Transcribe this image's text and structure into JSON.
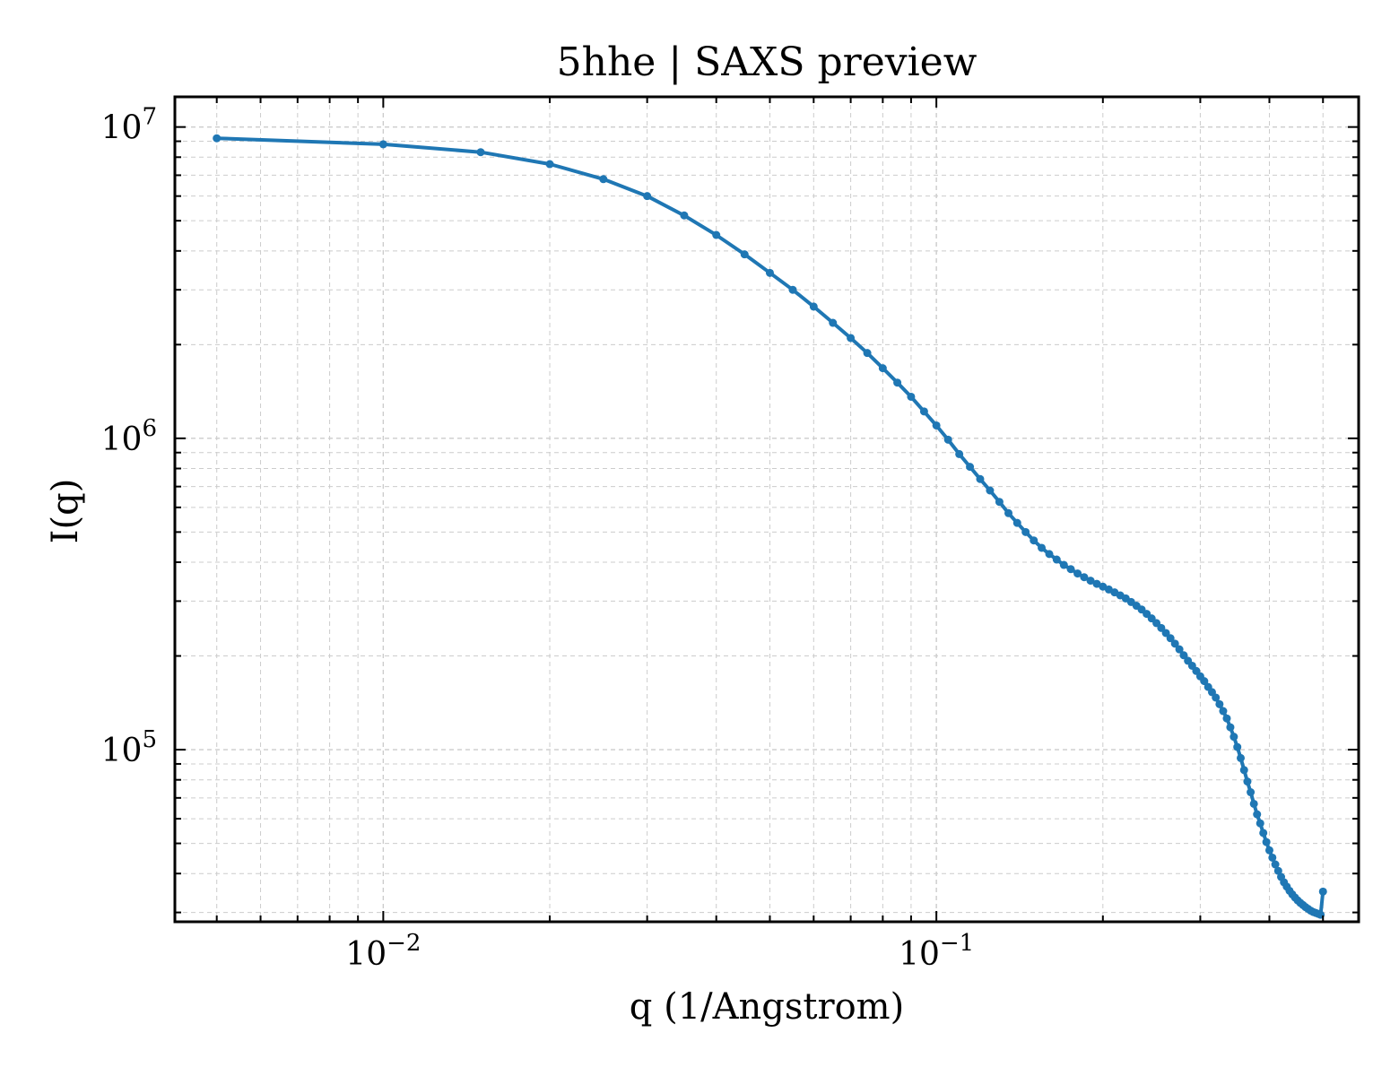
{
  "chart_data": {
    "type": "line",
    "title": "5hhe | SAXS preview",
    "xlabel": "q (1/Angstrom)",
    "ylabel": "I(q)",
    "xscale": "log",
    "yscale": "log",
    "xlim": [
      0.0042,
      0.58
    ],
    "ylim": [
      28000,
      12500000
    ],
    "grid": true,
    "legend": "none",
    "x_ticks": [
      {
        "value": 0.01,
        "base": "10",
        "exp": "−2"
      },
      {
        "value": 0.1,
        "base": "10",
        "exp": "−1"
      }
    ],
    "y_ticks": [
      {
        "value": 100000,
        "base": "10",
        "exp": "5"
      },
      {
        "value": 1000000,
        "base": "10",
        "exp": "6"
      },
      {
        "value": 10000000,
        "base": "10",
        "exp": "7"
      }
    ],
    "series": [
      {
        "color": "#1f77b4",
        "x": [
          0.005,
          0.01,
          0.015,
          0.02,
          0.025,
          0.03,
          0.035,
          0.04,
          0.045,
          0.05,
          0.055,
          0.06,
          0.065,
          0.07,
          0.075,
          0.08,
          0.085,
          0.09,
          0.095,
          0.1,
          0.105,
          0.11,
          0.115,
          0.12,
          0.125,
          0.13,
          0.135,
          0.14,
          0.145,
          0.15,
          0.155,
          0.16,
          0.165,
          0.17,
          0.175,
          0.18,
          0.185,
          0.19,
          0.195,
          0.2,
          0.205,
          0.21,
          0.215,
          0.22,
          0.225,
          0.23,
          0.235,
          0.24,
          0.245,
          0.25,
          0.255,
          0.26,
          0.265,
          0.27,
          0.275,
          0.28,
          0.285,
          0.29,
          0.295,
          0.3,
          0.305,
          0.31,
          0.315,
          0.32,
          0.325,
          0.33,
          0.335,
          0.34,
          0.345,
          0.35,
          0.355,
          0.36,
          0.365,
          0.37,
          0.375,
          0.38,
          0.385,
          0.39,
          0.395,
          0.4,
          0.405,
          0.41,
          0.415,
          0.42,
          0.425,
          0.43,
          0.435,
          0.44,
          0.445,
          0.45,
          0.455,
          0.46,
          0.465,
          0.47,
          0.475,
          0.48,
          0.485,
          0.49,
          0.495,
          0.5
        ],
        "y": [
          9200000,
          8800000,
          8300000,
          7600000,
          6800000,
          6000000,
          5200000,
          4500000,
          3900000,
          3400000,
          3000000,
          2650000,
          2350000,
          2100000,
          1880000,
          1680000,
          1510000,
          1360000,
          1220000,
          1100000,
          990000,
          890000,
          810000,
          740000,
          680000,
          625000,
          575000,
          535000,
          500000,
          470000,
          445000,
          425000,
          408000,
          392000,
          380000,
          368000,
          358000,
          349000,
          341000,
          334000,
          327000,
          320000,
          313000,
          306000,
          298000,
          290000,
          282000,
          273000,
          264000,
          255000,
          246000,
          237000,
          228000,
          219000,
          210000,
          201000,
          193000,
          186000,
          179000,
          172000,
          166000,
          159000,
          153000,
          147000,
          140000,
          133000,
          126000,
          118000,
          110000,
          102000,
          94000,
          86000,
          79000,
          73000,
          67000,
          62000,
          58000,
          54000,
          50500,
          47500,
          45000,
          42800,
          40800,
          39000,
          37500,
          36300,
          35200,
          34300,
          33500,
          32800,
          32200,
          31700,
          31200,
          30800,
          30400,
          30100,
          29900,
          29700,
          29500,
          35000
        ]
      }
    ]
  }
}
